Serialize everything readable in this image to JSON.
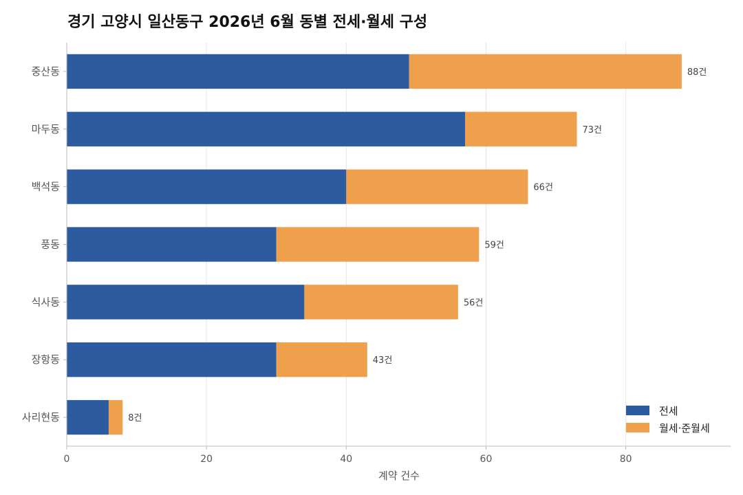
{
  "chart_data": {
    "type": "bar",
    "orientation": "horizontal",
    "stacked": true,
    "title": "경기 고양시 일산동구 2026년 6월 동별 전세·월세 구성",
    "xlabel": "계약 건수",
    "ylabel": "",
    "xlim": [
      0,
      95
    ],
    "xticks": [
      0,
      20,
      40,
      60,
      80
    ],
    "grid": "vertical",
    "legend_position": "bottom-right",
    "categories": [
      "중산동",
      "마두동",
      "백석동",
      "풍동",
      "식사동",
      "장항동",
      "사리현동"
    ],
    "series": [
      {
        "name": "전세",
        "color": "#2c5ba0",
        "values": [
          49,
          57,
          40,
          30,
          34,
          30,
          6
        ]
      },
      {
        "name": "월세·준월세",
        "color": "#eea04c",
        "values": [
          39,
          16,
          26,
          29,
          22,
          13,
          2
        ]
      }
    ],
    "total_labels": [
      "88건",
      "73건",
      "66건",
      "59건",
      "56건",
      "43건",
      "8건"
    ]
  }
}
